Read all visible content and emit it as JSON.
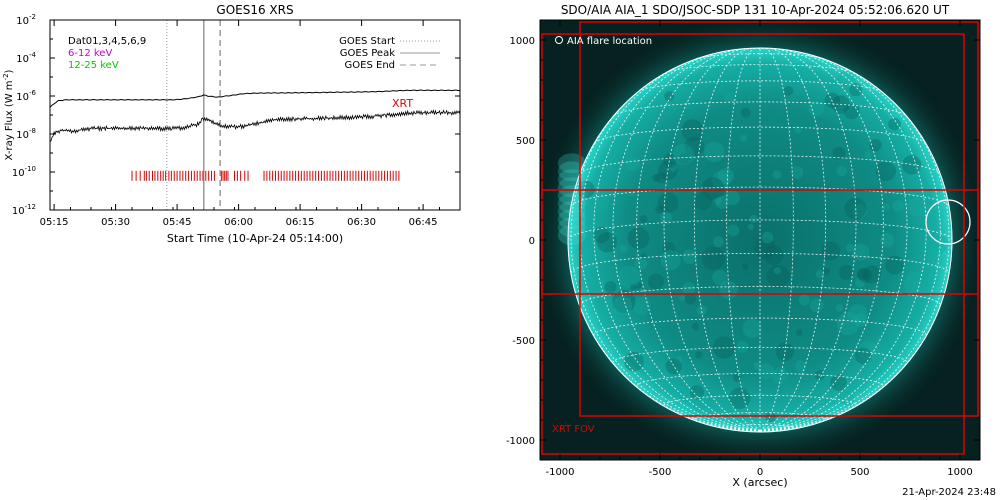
{
  "footer": {
    "timestamp": "21-Apr-2024 23:48"
  },
  "chart_data": [
    {
      "type": "line",
      "title": "GOES16 XRS",
      "xlabel": "Start Time (10-Apr-24 05:14:00)",
      "ylabel": "X-ray Flux (W m^-2)",
      "ylabel_main": "X-ray Flux (W m",
      "ylabel_exp": "-2",
      "ylabel_close": ")",
      "yscale": "log",
      "ylim_exp": [
        -12,
        -2
      ],
      "xlim_min": [
        0,
        100
      ],
      "x_ticks": [
        {
          "label": "05:15",
          "min": 1
        },
        {
          "label": "05:30",
          "min": 16
        },
        {
          "label": "05:45",
          "min": 31
        },
        {
          "label": "06:00",
          "min": 46
        },
        {
          "label": "06:15",
          "min": 61
        },
        {
          "label": "06:30",
          "min": 76
        },
        {
          "label": "06:45",
          "min": 91
        }
      ],
      "y_ticks": [
        {
          "exp": -2,
          "label": "10",
          "sup": "-2"
        },
        {
          "exp": -4,
          "label": "10",
          "sup": "-4"
        },
        {
          "exp": -6,
          "label": "10",
          "sup": "-6"
        },
        {
          "exp": -8,
          "label": "10",
          "sup": "-8"
        },
        {
          "exp": -10,
          "label": "10",
          "sup": "-10"
        },
        {
          "exp": -12,
          "label": "10",
          "sup": "-12"
        }
      ],
      "channels_label": "Dat01,3,4,5,6,9",
      "energy_labels": [
        {
          "text": "6-12 keV",
          "color": "#cc00cc"
        },
        {
          "text": "12-25 keV",
          "color": "#00cc00"
        }
      ],
      "legend": [
        {
          "label": "GOES Start",
          "style": "dotted"
        },
        {
          "label": "GOES Peak",
          "style": "solid"
        },
        {
          "label": "GOES End",
          "style": "dashed"
        }
      ],
      "event_lines": {
        "start_min": 28.5,
        "peak_min": 37.5,
        "end_min": 41.5
      },
      "series": [
        {
          "name": "GOES Peak",
          "x_min": [
            0,
            1,
            2,
            4,
            6,
            10,
            14,
            18,
            22,
            26,
            30,
            32,
            34,
            36,
            37.5,
            39,
            41,
            43,
            45,
            47,
            50,
            55,
            60,
            65,
            70,
            75,
            80,
            85,
            88,
            92,
            96,
            100
          ],
          "log_flux": [
            -6.6,
            -6.4,
            -6.25,
            -6.2,
            -6.2,
            -6.2,
            -6.2,
            -6.2,
            -6.2,
            -6.2,
            -6.2,
            -6.17,
            -6.12,
            -6.05,
            -5.95,
            -6.02,
            -6.06,
            -6.0,
            -5.95,
            -5.88,
            -5.85,
            -5.84,
            -5.83,
            -5.82,
            -5.8,
            -5.79,
            -5.77,
            -5.72,
            -5.7,
            -5.7,
            -5.7,
            -5.7
          ]
        },
        {
          "name": "",
          "x_min": [
            0,
            1,
            2,
            4,
            6,
            8,
            10,
            14,
            18,
            22,
            26,
            30,
            33,
            36,
            37.5,
            39,
            41,
            43,
            45,
            47,
            50,
            55,
            60,
            65,
            70,
            75,
            80,
            85,
            88,
            92,
            96,
            100
          ],
          "log_flux": [
            -8.4,
            -8.0,
            -7.85,
            -7.8,
            -7.85,
            -7.75,
            -7.72,
            -7.7,
            -7.72,
            -7.68,
            -7.7,
            -7.72,
            -7.65,
            -7.5,
            -7.2,
            -7.3,
            -7.55,
            -7.6,
            -7.62,
            -7.6,
            -7.45,
            -7.25,
            -7.2,
            -7.18,
            -7.15,
            -7.1,
            -7.05,
            -6.95,
            -6.9,
            -6.88,
            -6.87,
            -6.88
          ]
        }
      ],
      "xrt_label": "XRT",
      "xrt_obs_min": [
        20,
        21,
        22,
        23,
        23.5,
        24.2,
        25,
        25.6,
        26.3,
        27,
        27.6,
        28.2,
        29,
        29.6,
        30.3,
        31,
        31.7,
        32.4,
        33.1,
        33.8,
        34.5,
        35.2,
        35.9,
        36.6,
        37.3,
        38,
        38.7,
        39.4,
        40.1,
        41.8,
        42.2,
        42.6,
        43,
        43.4,
        45,
        45.7,
        46.5,
        47.5,
        48.3,
        52.2,
        52.9,
        53.6,
        54.3,
        55,
        55.7,
        56.4,
        57.1,
        57.8,
        58.5,
        59.2,
        59.9,
        60.6,
        61.3,
        62,
        62.7,
        63.4,
        64.1,
        64.8,
        65.5,
        66.2,
        66.9,
        67.6,
        68.3,
        69,
        69.7,
        70.4,
        71.1,
        71.8,
        72.5,
        73.2,
        73.9,
        74.6,
        75.3,
        76,
        76.7,
        77.4,
        78.1,
        78.8,
        79.5,
        80.2,
        80.9,
        81.6,
        82.3,
        83,
        83.7,
        84.4,
        85.1
      ]
    },
    {
      "type": "image",
      "title": "SDO/AIA AIA_1 SDO/JSOC-SDP 131 10-Apr-2024 05:52:06.620 UT",
      "xlabel": "X (arcsec)",
      "ylabel": "",
      "xlim": [
        -1100,
        1100
      ],
      "ylim": [
        -1100,
        1100
      ],
      "x_ticks": [
        -1000,
        -500,
        0,
        500,
        1000
      ],
      "y_ticks": [
        1000,
        500,
        0,
        -500,
        -1000
      ],
      "x_tick_labels": [
        "-1000",
        "-500",
        "0",
        "500",
        "1000"
      ],
      "y_tick_labels": [
        "1000",
        "500",
        "0",
        "-500",
        "-1000"
      ],
      "solar_radius_arcsec": 960,
      "flare_location_label": "AIA flare location",
      "flare_location_arcsec": [
        940,
        90
      ],
      "xrt_fov_label": "XRT FOV",
      "xrt_fov_boxes_arcsec": [
        {
          "x0": -1090,
          "y0": -1070,
          "x1": 1020,
          "y1": 1030
        },
        {
          "x0": -1090,
          "y0": -270,
          "x1": 1090,
          "y1": 250
        },
        {
          "x0": -900,
          "y0": -880,
          "x1": 1090,
          "y1": 1090
        }
      ],
      "colors": {
        "disk": "#0c9c94",
        "background": "#06211f",
        "grid": "#ffffff",
        "overlay": "#e00000"
      }
    }
  ]
}
